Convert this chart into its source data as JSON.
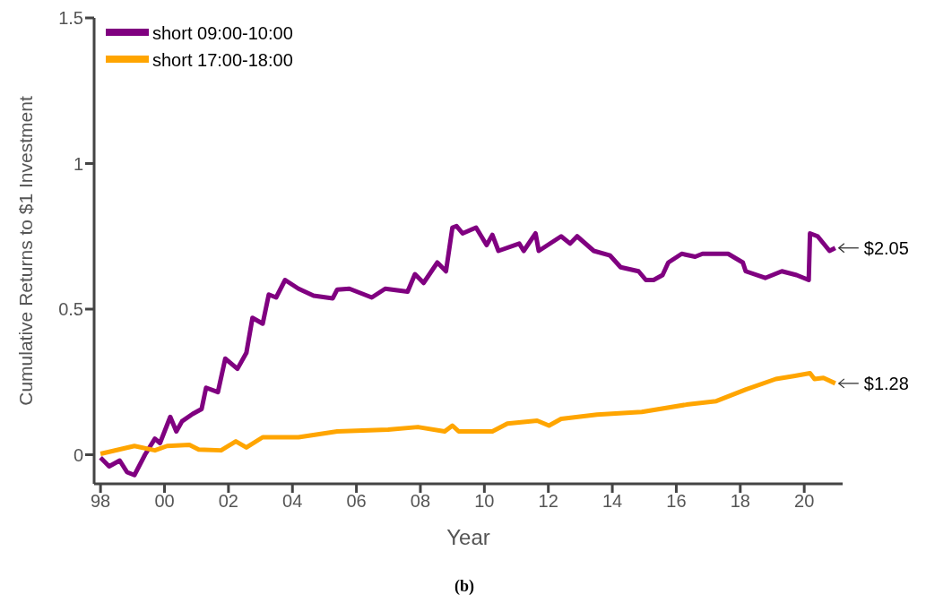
{
  "chart_data": {
    "type": "line",
    "xlabel": "Year",
    "ylabel": "Cumulative Returns to $1 Investment",
    "xlim": [
      1997.8,
      2021.2
    ],
    "ylim": [
      -0.1,
      1.5
    ],
    "xticks": [
      {
        "value": 1998,
        "label": "98"
      },
      {
        "value": 2000,
        "label": "00"
      },
      {
        "value": 2002,
        "label": "02"
      },
      {
        "value": 2004,
        "label": "04"
      },
      {
        "value": 2006,
        "label": "06"
      },
      {
        "value": 2008,
        "label": "08"
      },
      {
        "value": 2010,
        "label": "10"
      },
      {
        "value": 2012,
        "label": "12"
      },
      {
        "value": 2014,
        "label": "14"
      },
      {
        "value": 2016,
        "label": "16"
      },
      {
        "value": 2018,
        "label": "18"
      },
      {
        "value": 2020,
        "label": "20"
      }
    ],
    "yticks": [
      0,
      0.5,
      1,
      1.5
    ],
    "grid": false,
    "legend": "top left",
    "marker": "none",
    "line_style": "solid",
    "series": [
      {
        "name": "short 09:00-10:00",
        "color": "#800080",
        "x": [
          1998.0,
          1998.27,
          1998.6,
          1998.83,
          1999.06,
          1999.39,
          1999.7,
          1999.86,
          2000.18,
          2000.37,
          2000.55,
          2000.88,
          2001.16,
          2001.3,
          2001.67,
          2001.9,
          2002.28,
          2002.56,
          2002.75,
          2003.07,
          2003.26,
          2003.49,
          2003.77,
          2004.19,
          2004.66,
          2005.26,
          2005.4,
          2005.78,
          2006.48,
          2006.9,
          2007.6,
          2007.83,
          2008.1,
          2008.53,
          2008.8,
          2009.0,
          2009.13,
          2009.32,
          2009.74,
          2010.07,
          2010.25,
          2010.44,
          2011.09,
          2011.23,
          2011.6,
          2011.7,
          2012.4,
          2012.68,
          2012.9,
          2013.42,
          2013.93,
          2014.26,
          2014.82,
          2015.05,
          2015.29,
          2015.57,
          2015.75,
          2016.17,
          2016.59,
          2016.82,
          2017.62,
          2018.08,
          2018.17,
          2018.78,
          2019.3,
          2019.76,
          2020.14,
          2020.18,
          2020.42,
          2020.79,
          2020.97
        ],
        "values": [
          -0.01,
          -0.04,
          -0.02,
          -0.06,
          -0.07,
          0,
          0.055,
          0.04,
          0.13,
          0.08,
          0.115,
          0.14,
          0.157,
          0.23,
          0.215,
          0.33,
          0.295,
          0.35,
          0.47,
          0.45,
          0.55,
          0.54,
          0.6,
          0.57,
          0.546,
          0.537,
          0.567,
          0.57,
          0.54,
          0.57,
          0.56,
          0.62,
          0.59,
          0.66,
          0.63,
          0.78,
          0.785,
          0.76,
          0.78,
          0.72,
          0.755,
          0.7,
          0.725,
          0.7,
          0.76,
          0.7,
          0.75,
          0.725,
          0.75,
          0.7,
          0.684,
          0.644,
          0.63,
          0.6,
          0.6,
          0.617,
          0.66,
          0.69,
          0.68,
          0.69,
          0.69,
          0.66,
          0.63,
          0.607,
          0.63,
          0.617,
          0.6,
          0.76,
          0.75,
          0.7,
          0.71
        ]
      },
      {
        "name": "short 17:00-18:00",
        "color": "#ffa500",
        "x": [
          1998.0,
          1999.06,
          1999.7,
          2000.08,
          2000.78,
          2001.07,
          2001.77,
          2002.23,
          2002.56,
          2003.07,
          2004.19,
          2005.4,
          2006.99,
          2007.92,
          2008.76,
          2009.0,
          2009.2,
          2010.25,
          2010.72,
          2011.65,
          2012.02,
          2012.4,
          2013.52,
          2014.92,
          2016.32,
          2017.25,
          2018.18,
          2019.11,
          2019.67,
          2020.18,
          2020.32,
          2020.6,
          2020.97
        ],
        "values": [
          0.003,
          0.03,
          0.015,
          0.03,
          0.034,
          0.018,
          0.015,
          0.046,
          0.025,
          0.06,
          0.06,
          0.08,
          0.086,
          0.095,
          0.08,
          0.1,
          0.08,
          0.08,
          0.107,
          0.117,
          0.1,
          0.123,
          0.138,
          0.147,
          0.172,
          0.184,
          0.224,
          0.26,
          0.27,
          0.28,
          0.26,
          0.264,
          0.245
        ]
      }
    ],
    "annotations": [
      {
        "text": "$2.05",
        "x": 2020.97,
        "y": 0.71
      },
      {
        "text": "$1.28",
        "x": 2020.97,
        "y": 0.245
      },
      "(b)"
    ]
  }
}
